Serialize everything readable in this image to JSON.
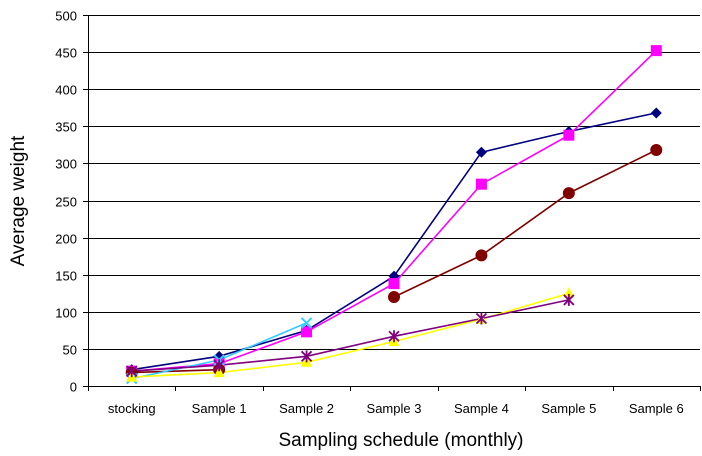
{
  "chart_data": {
    "type": "line",
    "title": "",
    "xlabel": "Sampling schedule (monthly)",
    "ylabel": "Average weight",
    "categories": [
      "stocking",
      "Sample 1",
      "Sample 2",
      "Sample 3",
      "Sample 4",
      "Sample 5",
      "Sample 6"
    ],
    "ylim": [
      0,
      500
    ],
    "yticks": [
      0,
      50,
      100,
      150,
      200,
      250,
      300,
      350,
      400,
      450,
      500
    ],
    "grid": true,
    "legend": "none",
    "series": [
      {
        "values": [
          22,
          40,
          75,
          148,
          315,
          343,
          368
        ],
        "color": "#000080",
        "marker": "diamond"
      },
      {
        "values": [
          20,
          30,
          73,
          138,
          272,
          338,
          452
        ],
        "color": "#FF00FF",
        "marker": "square"
      },
      {
        "values": [
          18,
          22,
          null,
          120,
          176,
          260,
          318
        ],
        "color": "#800000",
        "marker": "circle"
      },
      {
        "values": [
          10,
          35,
          85,
          null,
          null,
          null,
          null
        ],
        "color": "#33CCFF",
        "marker": "x"
      },
      {
        "values": [
          12,
          18,
          32,
          60,
          90,
          125,
          null
        ],
        "color": "#FFFF00",
        "marker": "triangle"
      },
      {
        "values": [
          20,
          28,
          40,
          67,
          91,
          116,
          null
        ],
        "color": "#800080",
        "marker": "star"
      }
    ]
  }
}
